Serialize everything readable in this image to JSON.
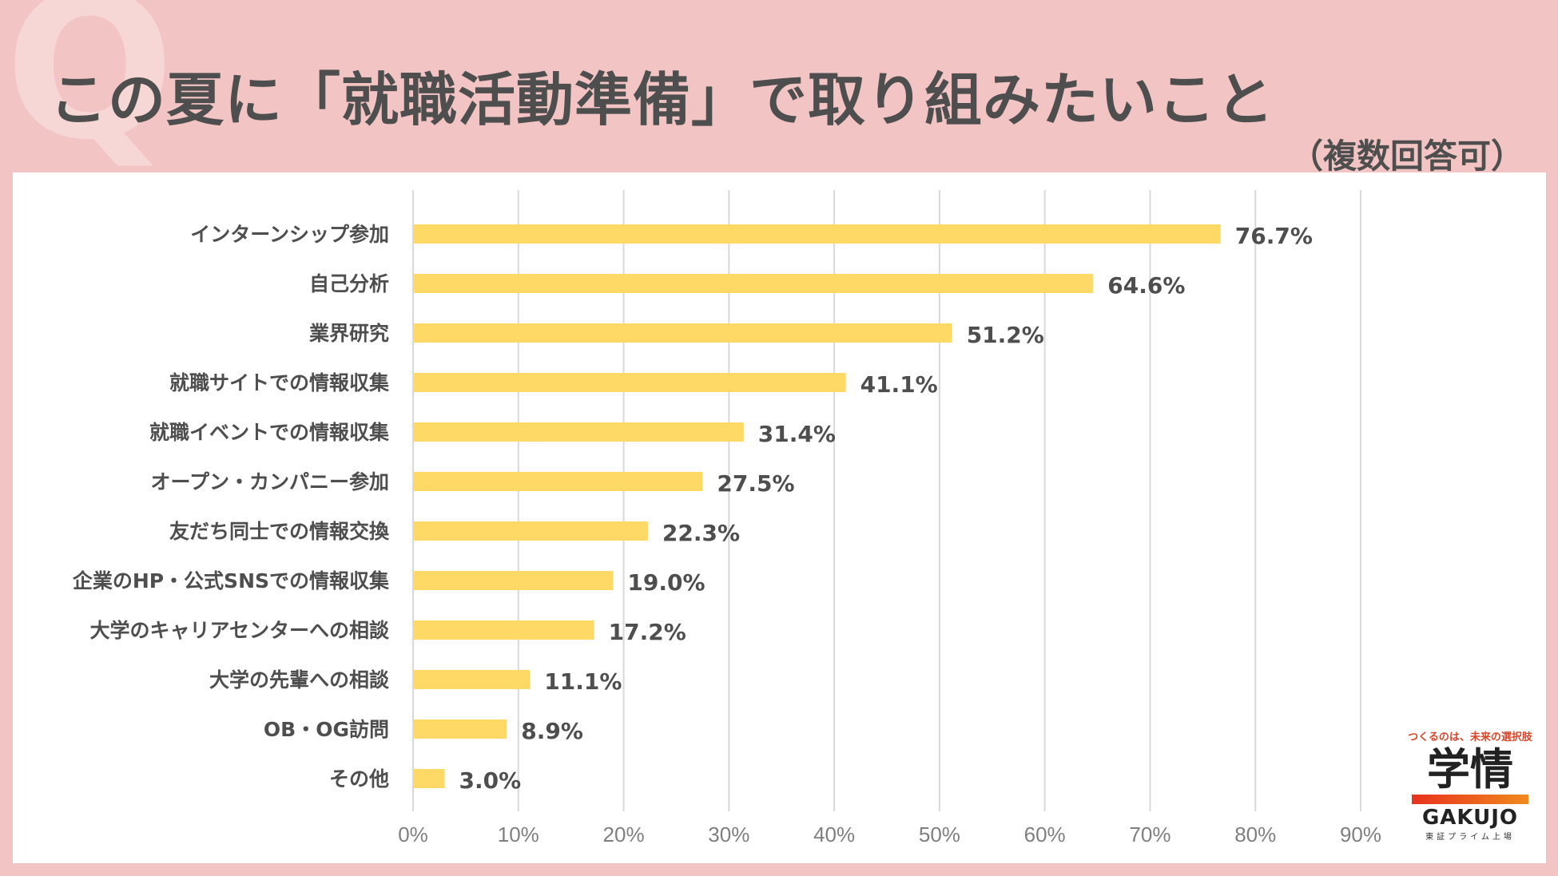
{
  "header": {
    "title": "この夏に「就職活動準備」で取り組みたいこと",
    "subtitle": "（複数回答可）",
    "q_mark": "Q"
  },
  "chart_data": {
    "type": "bar",
    "orientation": "horizontal",
    "categories": [
      "インターンシップ参加",
      "自己分析",
      "業界研究",
      "就職サイトでの情報収集",
      "就職イベントでの情報収集",
      "オープン・カンパニー参加",
      "友だち同士での情報交換",
      "企業のHP・公式SNSでの情報収集",
      "大学のキャリアセンターへの相談",
      "大学の先輩への相談",
      "OB・OG訪問",
      "その他"
    ],
    "values": [
      76.7,
      64.6,
      51.2,
      41.1,
      31.4,
      27.5,
      22.3,
      19.0,
      17.2,
      11.1,
      8.9,
      3.0
    ],
    "value_labels": [
      "76.7%",
      "64.6%",
      "51.2%",
      "41.1%",
      "31.4%",
      "27.5%",
      "22.3%",
      "19.0%",
      "17.2%",
      "11.1%",
      "8.9%",
      "3.0%"
    ],
    "xlim": [
      0,
      90
    ],
    "xticks": [
      "0%",
      "10%",
      "20%",
      "30%",
      "40%",
      "50%",
      "60%",
      "70%",
      "80%",
      "90%"
    ],
    "grid": true,
    "bar_color": "#ffd966",
    "grid_color": "#d9d9d9"
  },
  "logo": {
    "tagline": "つくるのは、未来の選択肢",
    "name_kanji": "学情",
    "name_en": "GAKUJO",
    "listing": "東証プライム上場"
  },
  "colors": {
    "background": "#f2c4c4",
    "panel": "#ffffff",
    "text": "#4e4e4e"
  }
}
